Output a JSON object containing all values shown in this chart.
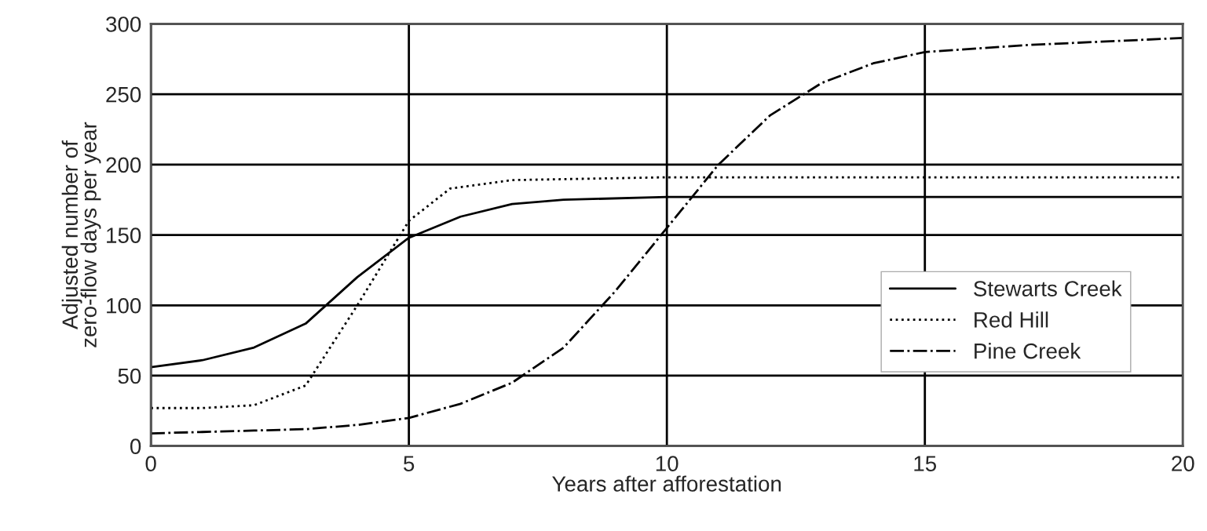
{
  "chart_data": {
    "type": "line",
    "xlabel": "Years after afforestation",
    "ylabel": "Adjusted number of\nzero-flow days per year",
    "xlim": [
      0,
      20
    ],
    "xticks": [
      0,
      5,
      10,
      15,
      20
    ],
    "ylim": [
      0,
      300
    ],
    "yticks": [
      0,
      50,
      100,
      150,
      200,
      250,
      300
    ],
    "grid": true,
    "legend": "lower right",
    "marker": "none",
    "series": [
      {
        "name": "Stewarts Creek",
        "color": "#000000",
        "line_style": "solid",
        "x": [
          0,
          1,
          2,
          3,
          4,
          5,
          6,
          7,
          8,
          10,
          20
        ],
        "values": [
          56,
          61,
          70,
          87,
          120,
          148,
          163,
          172,
          175,
          177,
          177
        ]
      },
      {
        "name": "Red Hill",
        "color": "#000000",
        "line_style": "dotted",
        "x": [
          0,
          1,
          2,
          3,
          4,
          5,
          5.8,
          7,
          10,
          20
        ],
        "values": [
          27,
          27,
          29,
          43,
          100,
          160,
          183,
          189,
          191,
          191
        ]
      },
      {
        "name": "Pine Creek",
        "color": "#000000",
        "line_style": "dashdot",
        "x": [
          0,
          1,
          2,
          3,
          4,
          5,
          6,
          7,
          8,
          9,
          10,
          11,
          12,
          13,
          14,
          15,
          17,
          20
        ],
        "values": [
          9,
          10,
          11,
          12,
          15,
          20,
          30,
          45,
          70,
          110,
          155,
          200,
          235,
          258,
          272,
          280,
          285,
          290
        ]
      }
    ]
  }
}
